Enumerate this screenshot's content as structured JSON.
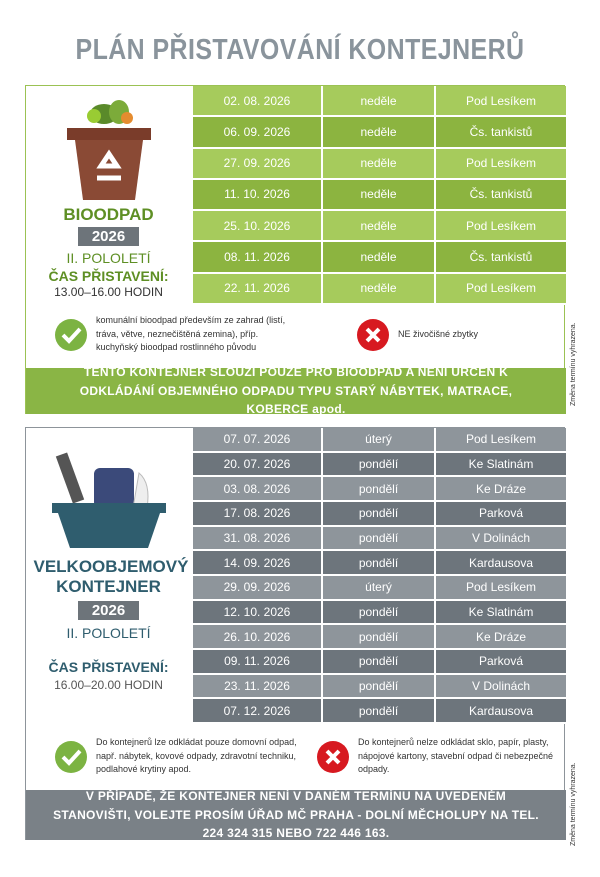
{
  "title": "PLÁN PŘISTAVOVÁNÍ KONTEJNERŮ",
  "side_note": "Změna termínu vyhrazena.",
  "bio": {
    "name": "BIOODPAD",
    "year": "2026",
    "period": "II. POLOLETÍ",
    "time_label": "ČAS PŘISTAVENÍ:",
    "time": "13.00–16.00 HODIN",
    "rows": [
      [
        "02. 08. 2026",
        "neděle",
        "Pod Lesíkem"
      ],
      [
        "06. 09. 2026",
        "neděle",
        "Čs. tankistů"
      ],
      [
        "27. 09. 2026",
        "neděle",
        "Pod Lesíkem"
      ],
      [
        "11. 10. 2026",
        "neděle",
        "Čs. tankistů"
      ],
      [
        "25. 10. 2026",
        "neděle",
        "Pod Lesíkem"
      ],
      [
        "08. 11. 2026",
        "neděle",
        "Čs. tankistů"
      ],
      [
        "22. 11. 2026",
        "neděle",
        "Pod Lesíkem"
      ]
    ],
    "allowed": "komunální bioodpad především ze zahrad (listí, tráva, větve, neznečištěná zemina), příp. kuchyňský bioodpad rostlinného původu",
    "forbidden": "NE živočišné zbytky",
    "notice": "TENTO KONTEJNER SLOUŽÍ POUZE PRO BIOODPAD A NENÍ URČEN K ODKLÁDÁNÍ OBJEMNÉHO ODPADU TYPU STARÝ NÁBYTEK, MATRACE, KOBERCE apod."
  },
  "bulky": {
    "name": "VELKOOBJEMOVÝ KONTEJNER",
    "year": "2026",
    "period": "II. POLOLETÍ",
    "time_label": "ČAS PŘISTAVENÍ:",
    "time": "16.00–20.00 HODIN",
    "rows": [
      [
        "07. 07. 2026",
        "úterý",
        "Pod Lesíkem"
      ],
      [
        "20. 07. 2026",
        "pondělí",
        "Ke Slatinám"
      ],
      [
        "03. 08. 2026",
        "pondělí",
        "Ke Dráze"
      ],
      [
        "17. 08. 2026",
        "pondělí",
        "Parková"
      ],
      [
        "31. 08. 2026",
        "pondělí",
        "V Dolinách"
      ],
      [
        "14. 09. 2026",
        "pondělí",
        "Kardausova"
      ],
      [
        "29. 09. 2026",
        "úterý",
        "Pod Lesíkem"
      ],
      [
        "12. 10. 2026",
        "pondělí",
        "Ke Slatinám"
      ],
      [
        "26. 10. 2026",
        "pondělí",
        "Ke Dráze"
      ],
      [
        "09. 11. 2026",
        "pondělí",
        "Parková"
      ],
      [
        "23. 11. 2026",
        "pondělí",
        "V Dolinách"
      ],
      [
        "07. 12. 2026",
        "pondělí",
        "Kardausova"
      ]
    ],
    "allowed": "Do kontejnerů lze odkládat pouze domovní odpad, např. nábytek, kovové odpady, zdravotní techniku, podlahové krytiny apod.",
    "forbidden": "Do kontejnerů nelze odkládat sklo, papír, plasty, nápojové kartony, stavební odpad či nebezpečné odpady.",
    "notice": "V PŘÍPADĚ, ŽE KONTEJNER NENÍ V DANÉM TERMÍNU NA UVEDENÉM STANOVIŠTI, VOLEJTE PROSÍM ÚŘAD MČ PRAHA - DOLNÍ MĚCHOLUPY NA TEL. 224 324 315 NEBO 722 446 163."
  }
}
